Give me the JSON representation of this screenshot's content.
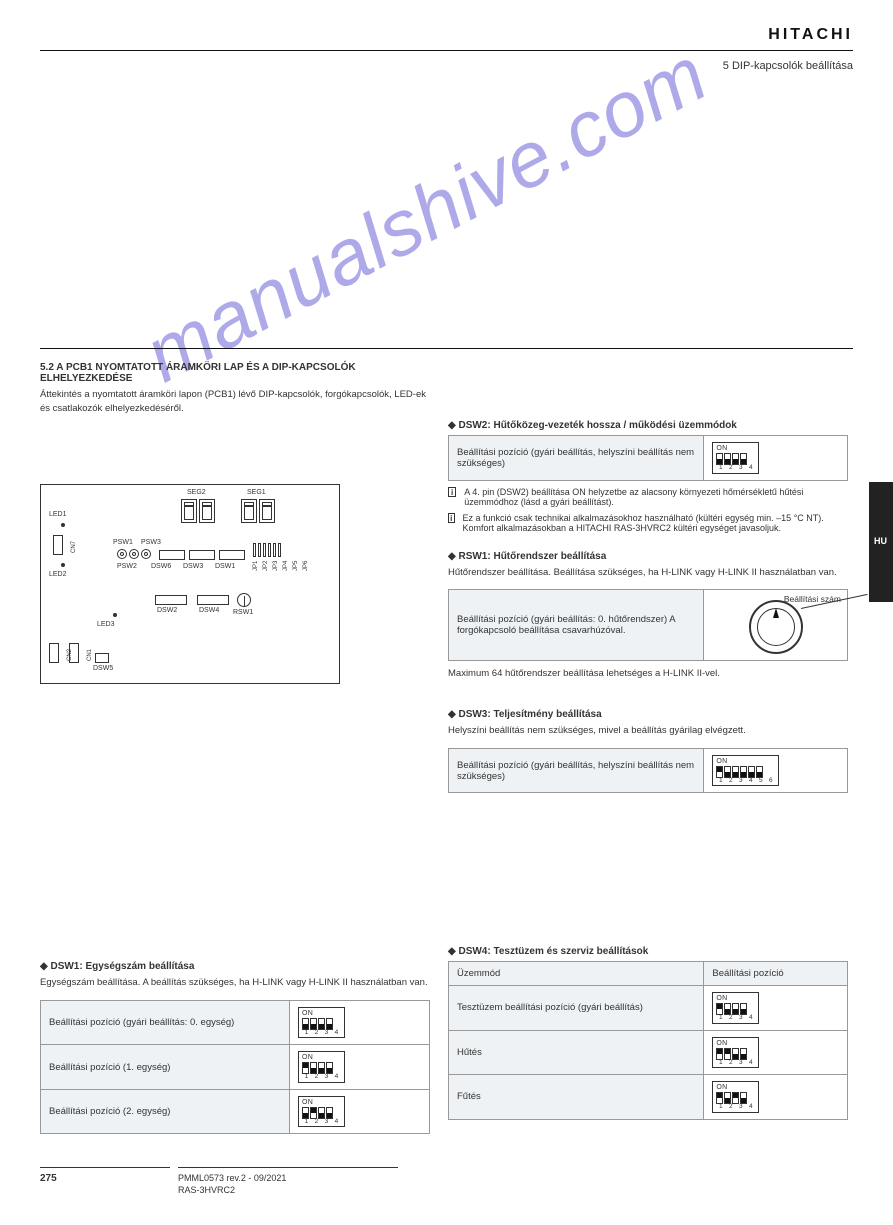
{
  "header": {
    "logo": "HITACHI",
    "section_title": "5 DIP-kapcsolók beállítása",
    "lang_code": "HU"
  },
  "watermark": "manualshive.com",
  "left": {
    "subtitle": "5.2 A PCB1 NYOMTATOTT ÁRAMKÖRI LAP ÉS A DIP-KAPCSOLÓK ELHELYEZKEDÉSE",
    "intro": "Áttekintés a nyomtatott áramköri lapon (PCB1) lévő DIP-kapcsolók, forgókapcsolók, LED-ek és csatlakozók elhelyezkedéséről.",
    "pcb": {
      "seg2": "SEG2",
      "seg1": "SEG1",
      "led1": "LED1",
      "led2": "LED2",
      "led3": "LED3",
      "cn7": "CN7",
      "cn2": "CN2",
      "cn1": "CN1",
      "psw1": "PSW1",
      "psw2": "PSW2",
      "psw3": "PSW3",
      "dsw1": "DSW1",
      "dsw2": "DSW2",
      "dsw3": "DSW3",
      "dsw4": "DSW4",
      "dsw5": "DSW5",
      "dsw6": "DSW6",
      "rsw1": "RSW1",
      "jp_labels": [
        "JP1",
        "JP2",
        "JP3",
        "JP4",
        "JP5",
        "JP6"
      ]
    },
    "dsw1_heading": "◆ DSW1: Egységszám beállítása",
    "dsw1_note": "Egységszám beállítása. A beállítás szükséges, ha H-LINK vagy H-LINK II használatban van.",
    "dsw1_table": [
      {
        "label": "Beállítási pozíció (gyári beállítás: 0. egység)",
        "pattern": [
          "down",
          "down",
          "down",
          "down"
        ]
      },
      {
        "label": "Beállítási pozíció (1. egység)",
        "pattern": [
          "up",
          "down",
          "down",
          "down"
        ]
      },
      {
        "label": "Beállítási pozíció (2. egység)",
        "pattern": [
          "down",
          "up",
          "down",
          "down"
        ]
      }
    ]
  },
  "right": {
    "dsw2_heading": "◆ DSW2: Hűtőközeg-vezeték hossza / működési üzemmódok",
    "dsw2_table": [
      {
        "label": "Beállítási pozíció (gyári beállítás, helyszíni beállítás nem szükséges)",
        "pattern": [
          "down",
          "down",
          "down",
          "down"
        ]
      }
    ],
    "dsw2_note1": "A 4. pin (DSW2) beállítása ON helyzetbe az alacsony környezeti hőmérsékletű hűtési üzemmódhoz (lásd a gyári beállítást).",
    "dsw2_note2": "Ez a funkció csak technikai alkalmazásokhoz használható (kültéri egység min. –15 °C NT). Komfort alkalmazásokban a HITACHI RAS-3HVRC2 kültéri egységet javasoljuk.",
    "rsw1_heading": "◆ RSW1: Hűtőrendszer beállítása",
    "rsw1_note": "Hűtőrendszer beállítása. Beállítása szükséges, ha H-LINK vagy H-LINK II használatban van.",
    "rsw1_table_label": "Beállítási pozíció (gyári beállítás: 0. hűtőrendszer) A forgókapcsoló beállítása csavarhúzóval.",
    "rsw1_pointer": "Beállítási szám",
    "rsw1_after": "Maximum 64 hűtőrendszer beállítása lehetséges a H-LINK II-vel.",
    "dsw3_heading": "◆ DSW3: Teljesítmény beállítása",
    "dsw3_note": "Helyszíni beállítás nem szükséges, mivel a beállítás gyárilag elvégzett.",
    "dsw3_table": [
      {
        "label": "Beállítási pozíció (gyári beállítás, helyszíni beállítás nem szükséges)",
        "pattern": [
          "up",
          "down",
          "down",
          "down",
          "down",
          "down"
        ]
      }
    ],
    "dsw4_heading": "◆ DSW4: Tesztüzem és szerviz beállítások",
    "dsw4_table": {
      "header_l": "Üzemmód",
      "header_r": "Beállítási pozíció",
      "rows": [
        {
          "label": "Tesztüzem beállítási pozíció (gyári beállítás)",
          "pattern": [
            "up",
            "down",
            "down",
            "down"
          ]
        },
        {
          "label": "Hűtés",
          "pattern": [
            "up",
            "up",
            "down",
            "down"
          ]
        },
        {
          "label": "Fűtés",
          "pattern": [
            "up",
            "down",
            "up",
            "down"
          ]
        }
      ]
    }
  },
  "footer": {
    "page": "275",
    "doc": "PMML0573 rev.2 - 09/2021",
    "model": "RAS-3HVRC2"
  }
}
